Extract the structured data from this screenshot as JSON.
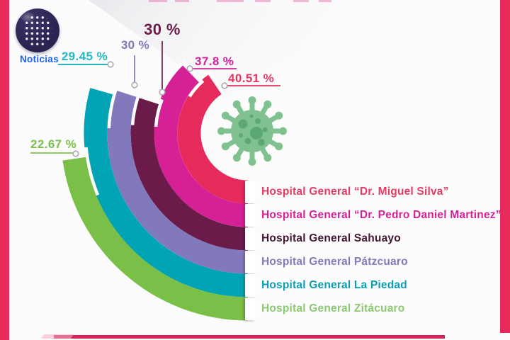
{
  "logo": {
    "text": "Noticias",
    "text_color": "#1E63E9",
    "sphere_color": "#292350",
    "sphere_gradient_inner": "#3A3468",
    "dot_color": "#FFFFFF"
  },
  "frame": {
    "accent": "#E72A5C",
    "bottom_color": "#D5215A",
    "bottom_highlight": "#F2AFC2",
    "clipped_title_mark_color": "#D5218A"
  },
  "icons": {
    "virus": {
      "body": "#7FC28F",
      "spots": "#5CA873"
    }
  },
  "chart_data": {
    "type": "radial-bar",
    "title": "",
    "unit": "%",
    "max": 100,
    "arc_start": "varies-by-value",
    "arc_end": "bottom (6 o'clock), label row",
    "direction": "counterclockwise-down-left-side",
    "series": [
      {
        "name": "Hospital General “Dr. Miguel Silva”",
        "value": 40.51,
        "value_label": "40.51 %",
        "color": "#E72A5C",
        "label_color": "#E83A63",
        "value_color": "#E8355E"
      },
      {
        "name": "Hospital General “Dr. Pedro Daniel Martinez”",
        "value": 37.8,
        "value_label": "37.8 %",
        "color": "#D62095",
        "label_color": "#D62196",
        "value_color": "#D42097"
      },
      {
        "name": "Hospital General Sahuayo",
        "value": 30,
        "value_label": "30 %",
        "color": "#6A1B4A",
        "label_color": "#441732",
        "value_color": "#6E1A49"
      },
      {
        "name": "Hospital General Pátzcuaro",
        "value": 30,
        "value_label": "30 %",
        "color": "#8279BD",
        "label_color": "#8179BB",
        "value_color": "#8077BC"
      },
      {
        "name": "Hospital General La Piedad",
        "value": 29.45,
        "value_label": "29.45 %",
        "color": "#00A4B4",
        "label_color": "#0B9FB1",
        "value_color": "#23B8C5"
      },
      {
        "name": "Hospital General Zitácuaro",
        "value": 22.67,
        "value_label": "22.67 %",
        "color": "#7ABF47",
        "label_color": "#8CC973",
        "value_color": "#7CC04B"
      }
    ]
  }
}
